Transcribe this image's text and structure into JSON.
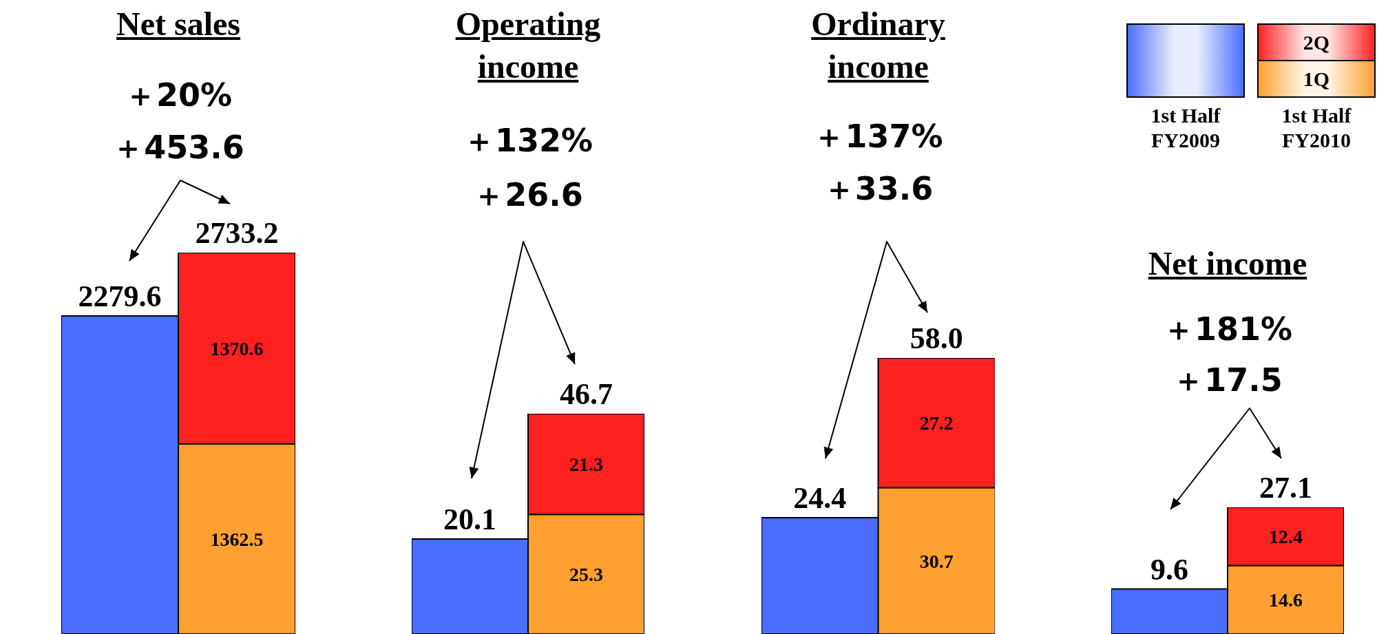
{
  "chart_data": [
    {
      "type": "bar",
      "title": "Net sales",
      "annotations": [
        "＋20%",
        "＋453.6"
      ],
      "categories": [
        null,
        null
      ],
      "stacked": true,
      "tick_labels": false,
      "legend": false,
      "series": [
        {
          "color": "#4a6cff",
          "values": [
            2279.6,
            null
          ]
        },
        {
          "color": "#ffa030",
          "values": [
            null,
            1362.5
          ],
          "value_labels": [
            null,
            "1362.5"
          ]
        },
        {
          "color": "#ff2020",
          "values": [
            null,
            1370.6
          ],
          "value_labels": [
            null,
            "1370.6"
          ]
        }
      ],
      "totals": [
        "2279.6",
        "2733.2"
      ]
    },
    {
      "type": "bar",
      "title": "Operating income",
      "annotations": [
        "＋132%",
        "＋26.6"
      ],
      "categories": [
        null,
        null
      ],
      "stacked": true,
      "tick_labels": false,
      "legend": false,
      "series": [
        {
          "color": "#4a6cff",
          "values": [
            20.1,
            null
          ]
        },
        {
          "color": "#ffa030",
          "values": [
            null,
            25.3
          ],
          "value_labels": [
            null,
            "25.3"
          ]
        },
        {
          "color": "#ff2020",
          "values": [
            null,
            21.3
          ],
          "value_labels": [
            null,
            "21.3"
          ]
        }
      ],
      "totals": [
        "20.1",
        "46.7"
      ]
    },
    {
      "type": "bar",
      "title": "Ordinary income",
      "annotations": [
        "＋137%",
        "＋33.6"
      ],
      "categories": [
        null,
        null
      ],
      "stacked": true,
      "tick_labels": false,
      "legend": false,
      "series": [
        {
          "color": "#4a6cff",
          "values": [
            24.4,
            null
          ]
        },
        {
          "color": "#ffa030",
          "values": [
            null,
            30.7
          ],
          "value_labels": [
            null,
            "30.7"
          ]
        },
        {
          "color": "#ff2020",
          "values": [
            null,
            27.2
          ],
          "value_labels": [
            null,
            "27.2"
          ]
        }
      ],
      "totals": [
        "24.4",
        "58.0"
      ]
    },
    {
      "type": "bar",
      "title": "Net income",
      "annotations": [
        "＋181%",
        "＋17.5"
      ],
      "categories": [
        "1st Half FY2009",
        "1st Half FY2010"
      ],
      "stacked": true,
      "tick_labels": false,
      "legend": "top right",
      "series": [
        {
          "color": "#4a6cff",
          "values": [
            9.6,
            null
          ]
        },
        {
          "name": "1Q",
          "color": "#ffa030",
          "values": [
            null,
            14.6
          ],
          "value_labels": [
            null,
            "14.6"
          ]
        },
        {
          "name": "2Q",
          "color": "#ff2020",
          "values": [
            null,
            12.4
          ],
          "value_labels": [
            null,
            "12.4"
          ]
        }
      ],
      "totals": [
        "9.6",
        "27.1"
      ]
    }
  ]
}
